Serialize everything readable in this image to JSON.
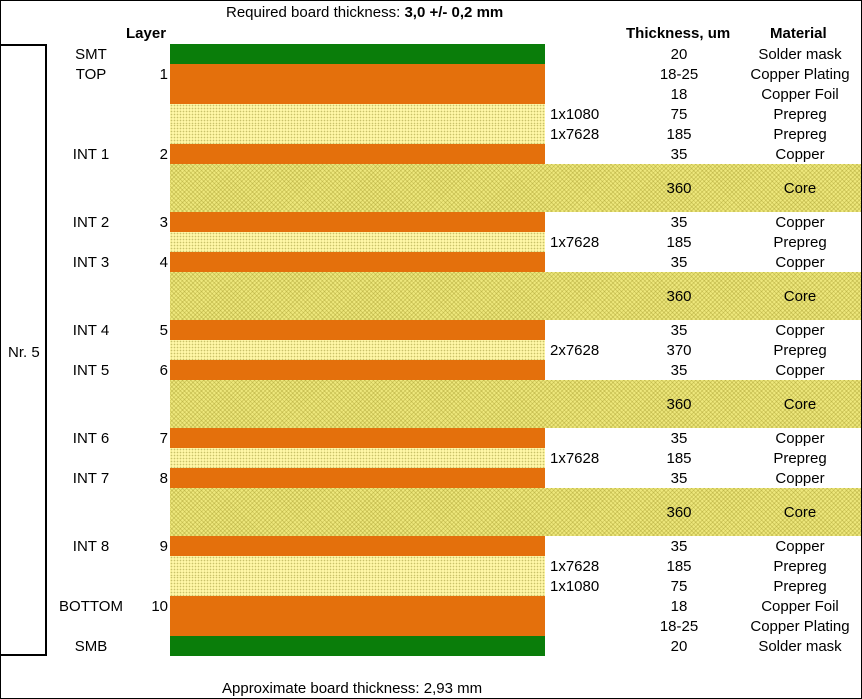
{
  "title_prefix": "Required board thickness: ",
  "title_value": "3,0 +/- 0,2 mm",
  "headers": {
    "layer": "Layer",
    "thickness": "Thickness, um",
    "material": "Material"
  },
  "stack_label": "Nr. 5",
  "footer": "Approximate board thickness: 2,93 mm",
  "colors": {
    "soldermask": "#0a7d0a",
    "copper": "#e4700c",
    "prepreg": "#fff7a6",
    "core": "#eee87c"
  },
  "rows": [
    {
      "layer_name": "SMT",
      "layer_num": "",
      "fabric": "",
      "thickness": "20",
      "material": "Solder mask",
      "type": "soldermask"
    },
    {
      "layer_name": "TOP",
      "layer_num": "1",
      "fabric": "",
      "thickness": "18-25",
      "material": "Copper Plating",
      "type": "copper"
    },
    {
      "layer_name": "",
      "layer_num": "",
      "fabric": "",
      "thickness": "18",
      "material": "Copper Foil",
      "type": "copper"
    },
    {
      "layer_name": "",
      "layer_num": "",
      "fabric": "1x1080",
      "thickness": "75",
      "material": "Prepreg",
      "type": "prepreg"
    },
    {
      "layer_name": "",
      "layer_num": "",
      "fabric": "1x7628",
      "thickness": "185",
      "material": "Prepreg",
      "type": "prepreg"
    },
    {
      "layer_name": "INT 1",
      "layer_num": "2",
      "fabric": "",
      "thickness": "35",
      "material": "Copper",
      "type": "copper"
    },
    {
      "layer_name": "",
      "layer_num": "",
      "fabric": "",
      "thickness": "360",
      "material": "Core",
      "type": "core"
    },
    {
      "layer_name": "INT 2",
      "layer_num": "3",
      "fabric": "",
      "thickness": "35",
      "material": "Copper",
      "type": "copper"
    },
    {
      "layer_name": "",
      "layer_num": "",
      "fabric": "1x7628",
      "thickness": "185",
      "material": "Prepreg",
      "type": "prepreg"
    },
    {
      "layer_name": "INT 3",
      "layer_num": "4",
      "fabric": "",
      "thickness": "35",
      "material": "Copper",
      "type": "copper"
    },
    {
      "layer_name": "",
      "layer_num": "",
      "fabric": "",
      "thickness": "360",
      "material": "Core",
      "type": "core"
    },
    {
      "layer_name": "INT 4",
      "layer_num": "5",
      "fabric": "",
      "thickness": "35",
      "material": "Copper",
      "type": "copper"
    },
    {
      "layer_name": "",
      "layer_num": "",
      "fabric": "2x7628",
      "thickness": "370",
      "material": "Prepreg",
      "type": "prepreg"
    },
    {
      "layer_name": "INT 5",
      "layer_num": "6",
      "fabric": "",
      "thickness": "35",
      "material": "Copper",
      "type": "copper"
    },
    {
      "layer_name": "",
      "layer_num": "",
      "fabric": "",
      "thickness": "360",
      "material": "Core",
      "type": "core"
    },
    {
      "layer_name": "INT 6",
      "layer_num": "7",
      "fabric": "",
      "thickness": "35",
      "material": "Copper",
      "type": "copper"
    },
    {
      "layer_name": "",
      "layer_num": "",
      "fabric": "1x7628",
      "thickness": "185",
      "material": "Prepreg",
      "type": "prepreg"
    },
    {
      "layer_name": "INT 7",
      "layer_num": "8",
      "fabric": "",
      "thickness": "35",
      "material": "Copper",
      "type": "copper"
    },
    {
      "layer_name": "",
      "layer_num": "",
      "fabric": "",
      "thickness": "360",
      "material": "Core",
      "type": "core"
    },
    {
      "layer_name": "INT 8",
      "layer_num": "9",
      "fabric": "",
      "thickness": "35",
      "material": "Copper",
      "type": "copper"
    },
    {
      "layer_name": "",
      "layer_num": "",
      "fabric": "1x7628",
      "thickness": "185",
      "material": "Prepreg",
      "type": "prepreg"
    },
    {
      "layer_name": "",
      "layer_num": "",
      "fabric": "1x1080",
      "thickness": "75",
      "material": "Prepreg",
      "type": "prepreg"
    },
    {
      "layer_name": "BOTTOM",
      "layer_num": "10",
      "fabric": "",
      "thickness": "18",
      "material": "Copper Foil",
      "type": "copper"
    },
    {
      "layer_name": "",
      "layer_num": "",
      "fabric": "",
      "thickness": "18-25",
      "material": "Copper Plating",
      "type": "copper"
    },
    {
      "layer_name": "SMB",
      "layer_num": "",
      "fabric": "",
      "thickness": "20",
      "material": "Solder mask",
      "type": "soldermask"
    }
  ]
}
